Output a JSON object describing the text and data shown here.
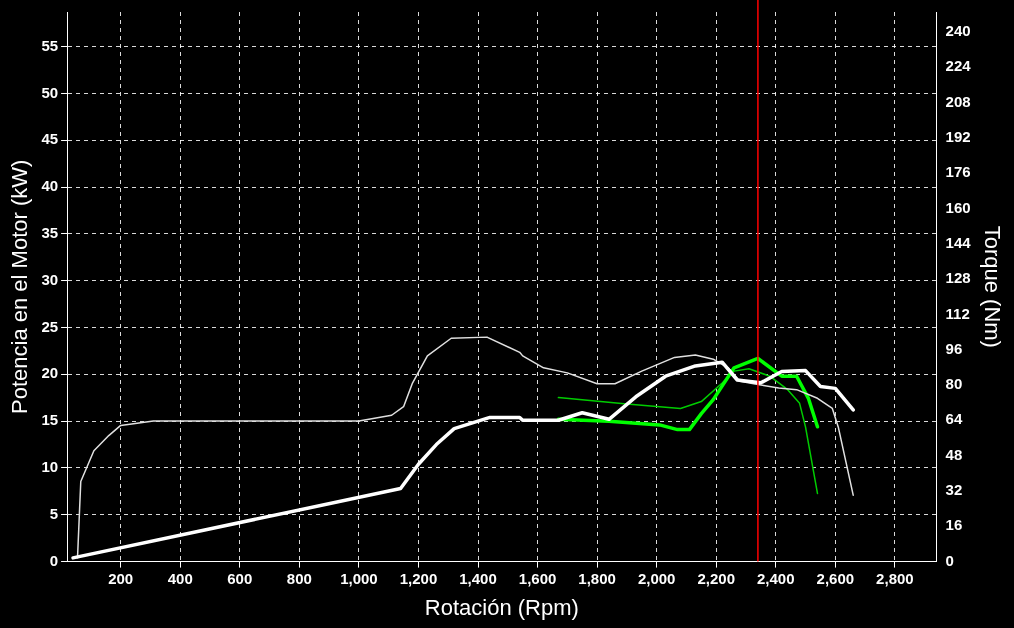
{
  "chart_data": {
    "type": "line",
    "xlabel": "Rotación (Rpm)",
    "ylabel": "Potencia en el Motor (kW)",
    "y2label": "Torque (Nm)",
    "xlim": [
      20,
      2940
    ],
    "xticks": [
      200,
      400,
      600,
      800,
      {
        "value": 1000,
        "label": "1,000"
      },
      {
        "value": 1200,
        "label": "1,200"
      },
      {
        "value": 1400,
        "label": "1,400"
      },
      {
        "value": 1600,
        "label": "1,600"
      },
      {
        "value": 1800,
        "label": "1,800"
      },
      {
        "value": 2000,
        "label": "2,000"
      },
      {
        "value": 2200,
        "label": "2,200"
      },
      {
        "value": 2400,
        "label": "2,400"
      },
      {
        "value": 2600,
        "label": "2,600"
      },
      {
        "value": 2800,
        "label": "2,800"
      }
    ],
    "ylim": [
      0,
      58.7
    ],
    "yticks": [
      0,
      5,
      10,
      15,
      20,
      25,
      30,
      35,
      40,
      45,
      50,
      55
    ],
    "y2lim": [
      0,
      249
    ],
    "y2ticks": [
      0,
      16,
      32,
      48,
      64,
      80,
      96,
      112,
      128,
      144,
      160,
      176,
      192,
      208,
      224,
      240
    ],
    "grid": true,
    "legend": false,
    "marker": "none",
    "line_style": "solid",
    "ref_lines": [
      {
        "axis": "x",
        "value": 2340,
        "color": "#ff0000"
      }
    ],
    "series": [
      {
        "color": "#ffffff",
        "x": [
          40,
          1140,
          1200,
          1260,
          1320,
          1440,
          1540,
          1550,
          1670,
          1750,
          1840,
          1930,
          2030,
          2130,
          2220,
          2270,
          2350,
          2420,
          2500,
          2550,
          2600,
          2660
        ],
        "values": [
          0.4,
          7.8,
          10.4,
          12.5,
          14.2,
          15.4,
          15.4,
          15.1,
          15.1,
          15.9,
          15.2,
          17.6,
          19.8,
          20.9,
          21.3,
          19.4,
          19.1,
          20.3,
          20.4,
          18.7,
          18.5,
          16.2
        ]
      },
      {
        "color": "#e0e0e0",
        "axis": "y2",
        "x": [
          55,
          66,
          110,
          160,
          200,
          310,
          1000,
          1110,
          1150,
          1180,
          1230,
          1310,
          1430,
          1540,
          1550,
          1620,
          1700,
          1800,
          1860,
          1950,
          2060,
          2130,
          2190,
          2240,
          2280,
          2340,
          2410,
          2470,
          2540,
          2590,
          2610,
          2660
        ],
        "values": [
          1.7,
          36.3,
          50.2,
          57.1,
          61.7,
          63.7,
          63.7,
          66.3,
          70.2,
          80.9,
          93.2,
          101.2,
          101.7,
          94.8,
          93.2,
          87.8,
          85.5,
          80.6,
          80.6,
          86.3,
          92.5,
          93.6,
          91.7,
          87.8,
          81.7,
          80.2,
          78.6,
          77.9,
          74.0,
          69.4,
          60.9,
          30.1
        ]
      },
      {
        "color": "#00ff00",
        "x": [
          1670,
          1840,
          2010,
          2070,
          2110,
          2150,
          2190,
          2260,
          2340,
          2420,
          2470,
          2510,
          2540
        ],
        "values": [
          15.2,
          15.0,
          14.6,
          14.1,
          14.1,
          15.8,
          17.3,
          20.7,
          21.7,
          19.8,
          19.8,
          17.4,
          14.4
        ]
      },
      {
        "color": "#00cc00",
        "axis": "y2",
        "x": [
          1670,
          1900,
          2080,
          2150,
          2220,
          2260,
          2310,
          2380,
          2440,
          2480,
          2500,
          2540
        ],
        "values": [
          74.3,
          71.4,
          69.4,
          72.5,
          80.9,
          86.3,
          87.4,
          84.0,
          77.9,
          71.7,
          60.9,
          30.9
        ]
      }
    ]
  }
}
